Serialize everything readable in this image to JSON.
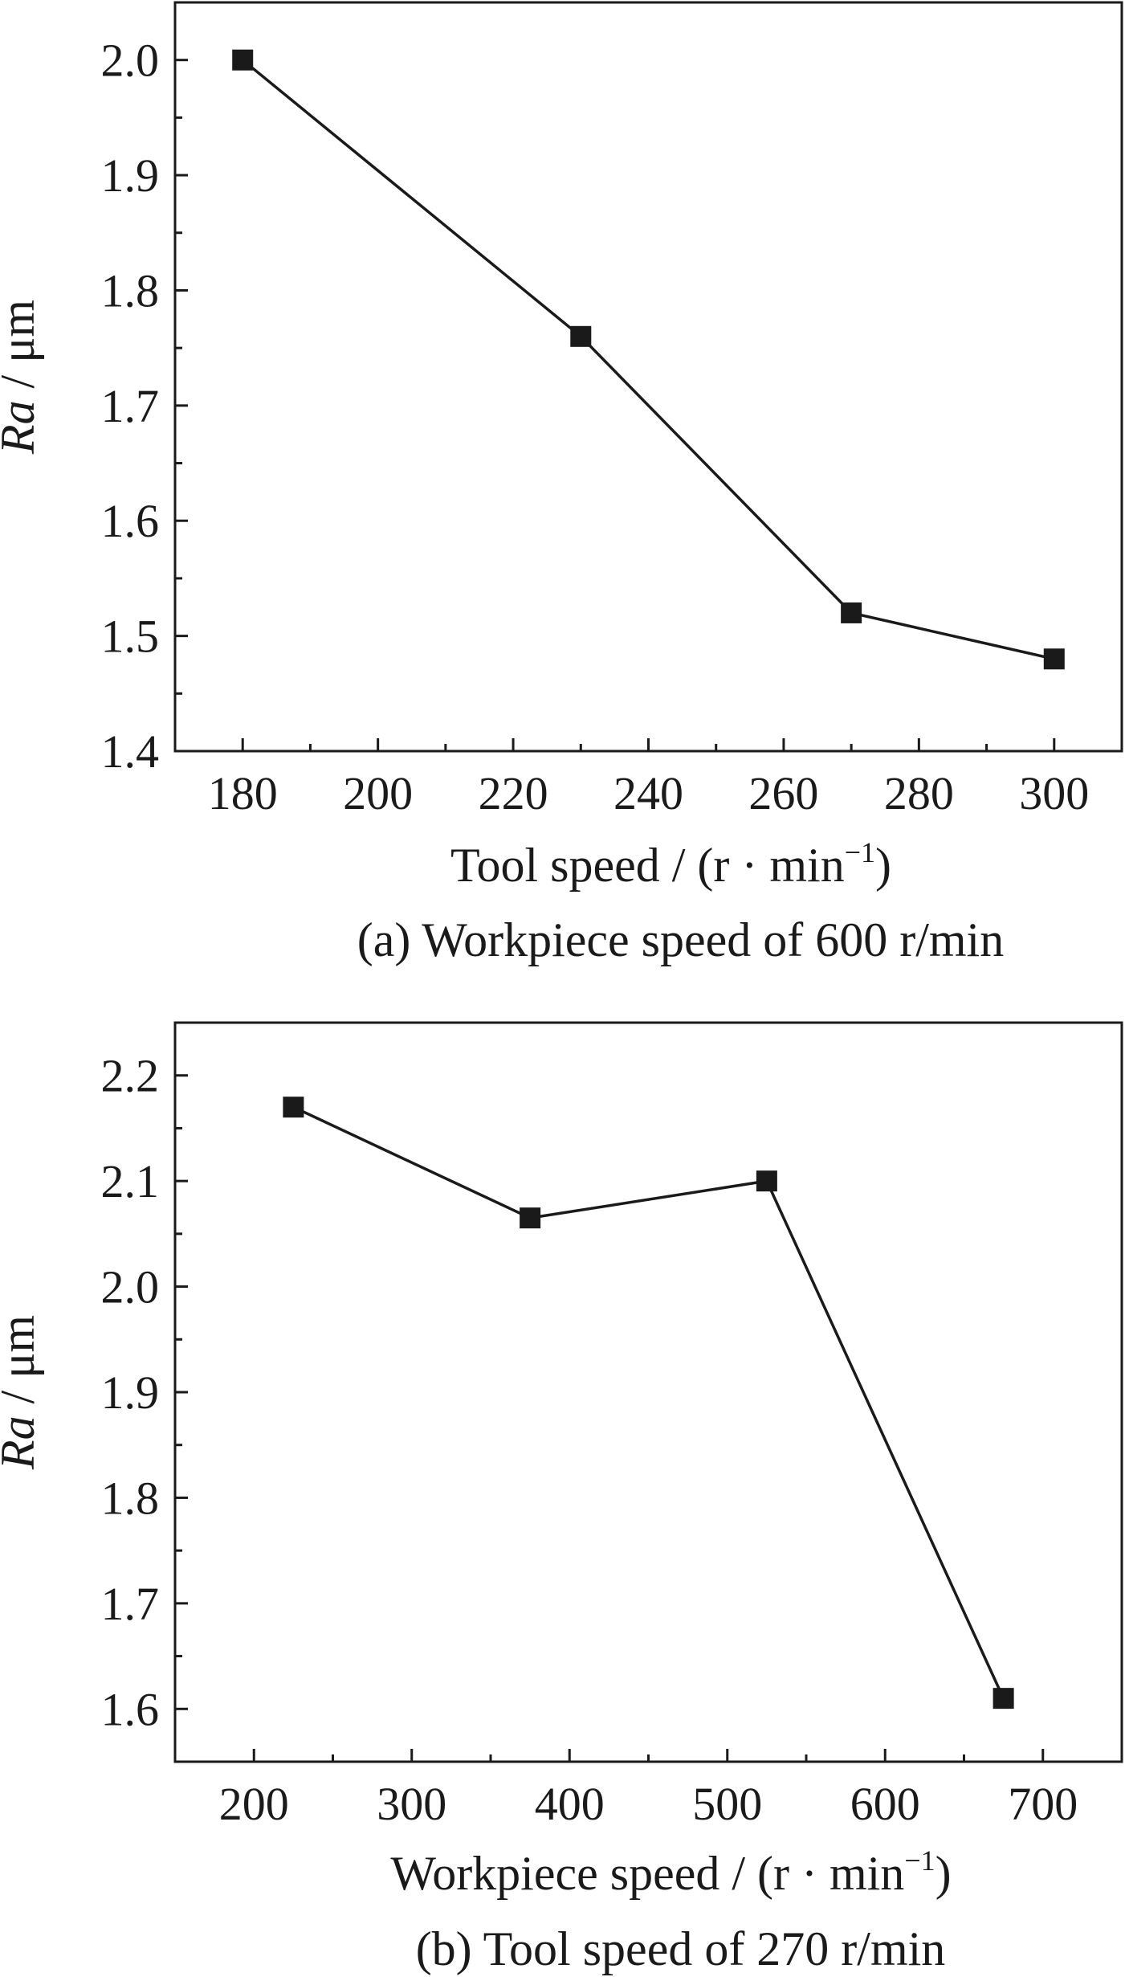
{
  "chart_data": [
    {
      "type": "line",
      "caption": "(a) Workpiece speed of 600 r/min",
      "xlabel": {
        "main": "Tool speed / (r · min",
        "sup": "−1",
        "end": ")"
      },
      "ylabel": {
        "italic": "Ra",
        "rest": " / μm"
      },
      "xlim": [
        170,
        310
      ],
      "ylim": [
        1.4,
        2.05
      ],
      "xticks": [
        180,
        200,
        220,
        240,
        260,
        280,
        300
      ],
      "yticks": [
        1.4,
        1.5,
        1.6,
        1.7,
        1.8,
        1.9,
        2.0
      ],
      "ytick_labels": [
        "1.4",
        "1.5",
        "1.6",
        "1.7",
        "1.8",
        "1.9",
        "2.0"
      ],
      "grid": false,
      "series": [
        {
          "x": [
            180,
            230,
            270,
            300
          ],
          "y": [
            2.0,
            1.76,
            1.52,
            1.48
          ],
          "color": "#1a1a1a",
          "marker": "square"
        }
      ]
    },
    {
      "type": "line",
      "caption": "(b) Tool speed of 270 r/min",
      "xlabel": {
        "main": "Workpiece speed / (r · min",
        "sup": "−1",
        "end": ")"
      },
      "ylabel": {
        "italic": "Ra",
        "rest": " / μm"
      },
      "xlim": [
        150,
        750
      ],
      "ylim": [
        1.55,
        2.25
      ],
      "xticks": [
        200,
        300,
        400,
        500,
        600,
        700
      ],
      "yticks": [
        1.6,
        1.7,
        1.8,
        1.9,
        2.0,
        2.1,
        2.2
      ],
      "ytick_labels": [
        "1.6",
        "1.7",
        "1.8",
        "1.9",
        "2.0",
        "2.1",
        "2.2"
      ],
      "grid": false,
      "series": [
        {
          "x": [
            225,
            375,
            525,
            675
          ],
          "y": [
            2.17,
            2.065,
            2.1,
            1.61
          ],
          "color": "#1a1a1a",
          "marker": "square"
        }
      ]
    }
  ]
}
